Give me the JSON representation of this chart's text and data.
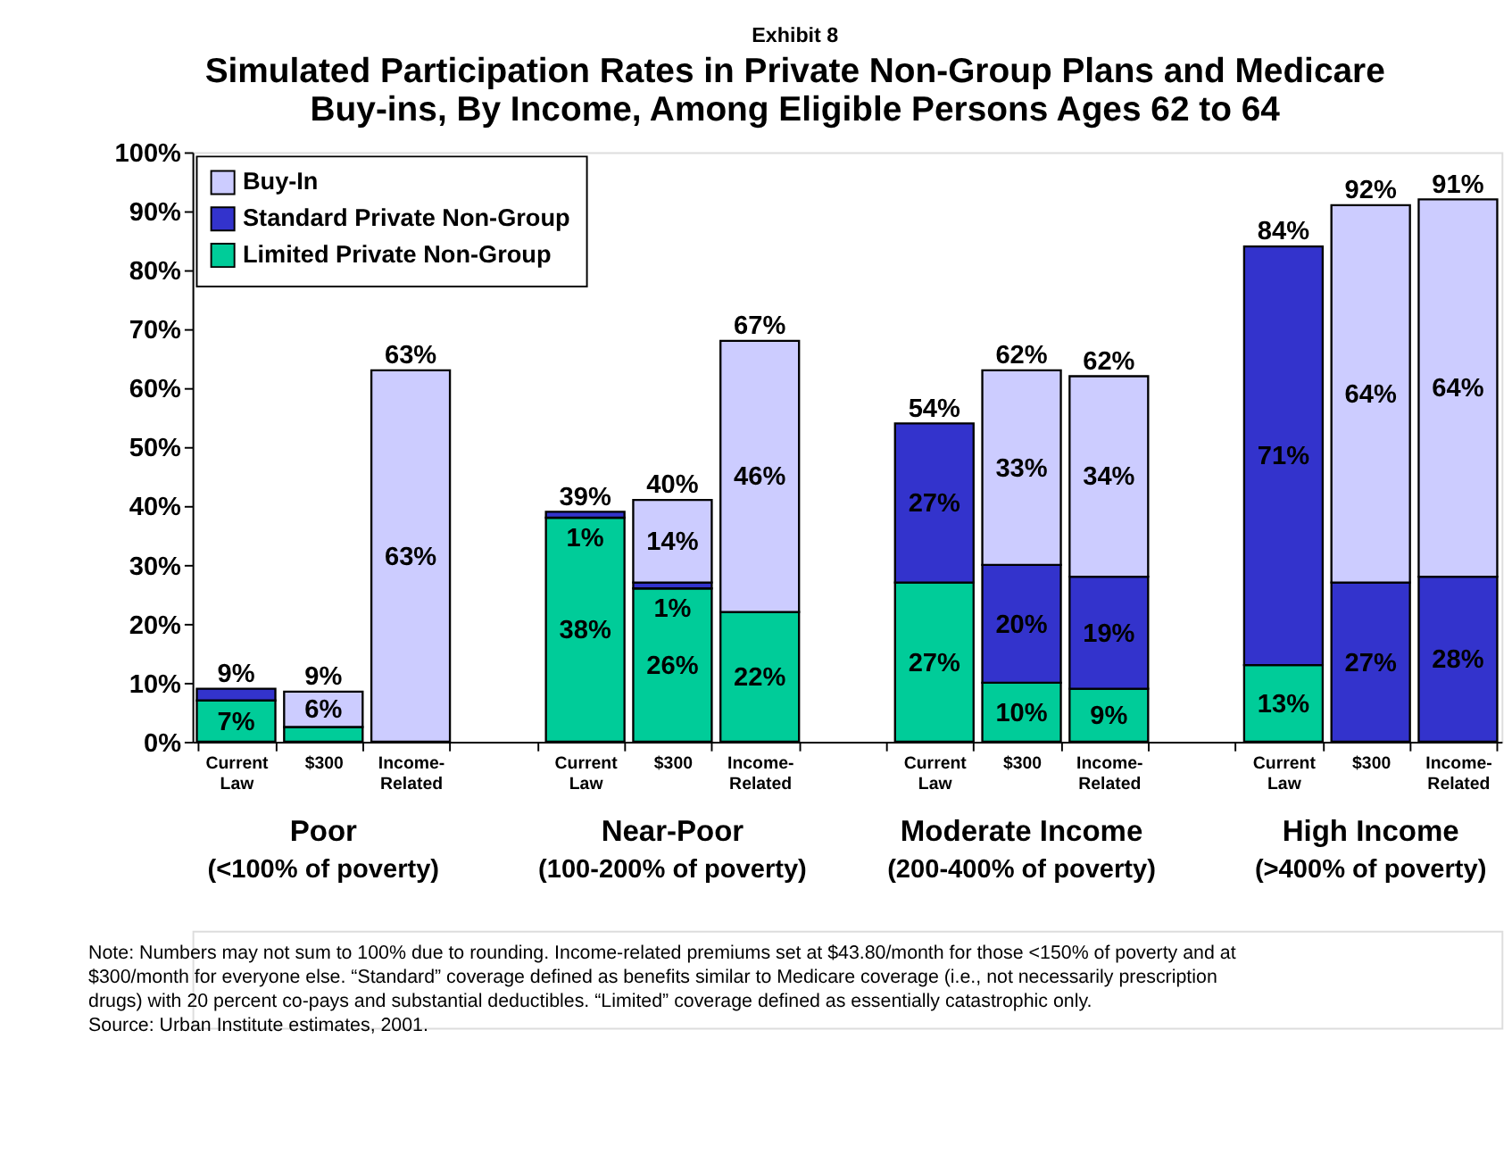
{
  "chart_data": {
    "type": "bar",
    "stacked": true,
    "subtitle": "Exhibit 8",
    "title": "Simulated Participation Rates in Private Non-Group Plans and Medicare Buy-ins, By Income, Among Eligible Persons Ages 62 to 64",
    "categories": [
      "Current Law",
      "$300",
      "Income-Related",
      null,
      "Current Law",
      "$300",
      "Income-Related",
      null,
      "Current Law",
      "$300",
      "Income-Related",
      null,
      "Current Law",
      "$300",
      "Income-Related"
    ],
    "series": [
      {
        "name": "Limited Private Non-Group",
        "color": "#00cc99",
        "values": [
          7,
          2.5,
          null,
          null,
          38,
          26,
          22,
          null,
          27,
          10,
          9,
          null,
          13,
          null,
          null
        ],
        "value_labels": [
          "7%",
          null,
          null,
          null,
          "38%",
          "26%",
          "22%",
          null,
          "27%",
          "10%",
          "9%",
          null,
          "13%",
          null,
          null
        ]
      },
      {
        "name": "Standard Private Non-Group",
        "color": "#3333cc",
        "values": [
          2,
          null,
          null,
          null,
          1,
          1,
          null,
          null,
          27,
          20,
          19,
          null,
          71,
          27,
          28
        ],
        "value_labels": [
          null,
          null,
          null,
          null,
          "1%",
          "1%",
          null,
          null,
          "27%",
          "20%",
          "19%",
          null,
          "71%",
          "27%",
          "28%"
        ]
      },
      {
        "name": "Buy-In",
        "color": "#ccccff",
        "values": [
          null,
          6,
          63,
          null,
          null,
          14,
          46,
          null,
          null,
          33,
          34,
          null,
          null,
          64,
          64
        ],
        "value_labels": [
          null,
          "6%",
          "63%",
          null,
          null,
          "14%",
          "46%",
          null,
          null,
          "33%",
          "34%",
          null,
          null,
          "64%",
          "64%"
        ]
      }
    ],
    "totals": [
      "9%",
      "9%",
      "63%",
      null,
      "39%",
      "40%",
      "67%",
      null,
      "54%",
      "62%",
      "62%",
      null,
      "84%",
      "92%",
      "91%"
    ],
    "ylim": [
      0,
      100
    ],
    "yticks": [
      {
        "value": 0,
        "label": "0%"
      },
      {
        "value": 10,
        "label": "10%"
      },
      {
        "value": 20,
        "label": "20%"
      },
      {
        "value": 30,
        "label": "30%"
      },
      {
        "value": 40,
        "label": "40%"
      },
      {
        "value": 50,
        "label": "50%"
      },
      {
        "value": 60,
        "label": "60%"
      },
      {
        "value": 70,
        "label": "70%"
      },
      {
        "value": 80,
        "label": "80%"
      },
      {
        "value": 90,
        "label": "90%"
      },
      {
        "value": 100,
        "label": "100%"
      }
    ],
    "grid": false,
    "legend": "top left",
    "annotations": [
      "Poor (<100% of poverty)",
      "Near-Poor (100-200% of poverty)",
      "Moderate Income (200-400% of poverty)",
      "High Income (>400% of poverty)",
      "Note:  Numbers may not sum to 100% due to rounding.  Income-related premiums set at $43.80/month for those <150% of poverty and at $300/month for everyone else. “Standard” coverage defined as benefits similar to Medicare coverage (i.e., not necessarily prescription drugs) with 20 percent co-pays and substantial deductibles.  “Limited” coverage defined as essentially catastrophic only.",
      "Source:  Urban Institute estimates, 2001."
    ]
  }
}
